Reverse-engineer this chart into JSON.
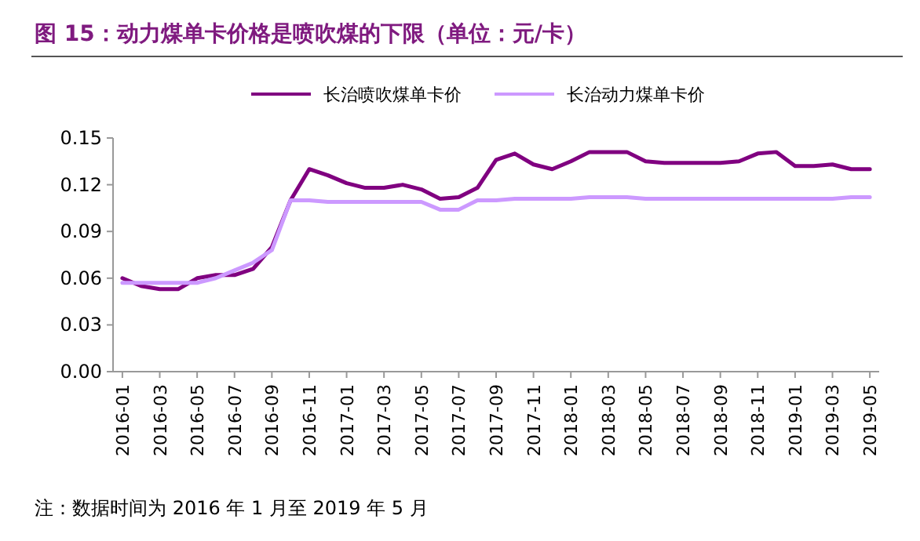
{
  "chart_data": {
    "type": "line",
    "title": "图 15：动力煤单卡价格是喷吹煤的下限（单位：元/卡）",
    "categories": [
      "2016-01",
      null,
      "2016-03",
      null,
      "2016-05",
      null,
      "2016-07",
      null,
      "2016-09",
      null,
      "2016-11",
      null,
      "2017-01",
      null,
      "2017-03",
      null,
      "2017-05",
      null,
      "2017-07",
      null,
      "2017-09",
      null,
      "2017-11",
      null,
      "2018-01",
      null,
      "2018-03",
      null,
      "2018-05",
      null,
      "2018-07",
      null,
      "2018-09",
      null,
      "2018-11",
      null,
      "2019-01",
      null,
      "2019-03",
      null,
      "2019-05"
    ],
    "series": [
      {
        "name": "长治喷吹煤单卡价",
        "color": "#800080",
        "values": [
          0.06,
          0.055,
          0.053,
          0.053,
          0.06,
          0.062,
          0.062,
          0.066,
          0.08,
          0.11,
          0.13,
          0.126,
          0.121,
          0.118,
          0.118,
          0.12,
          0.117,
          0.111,
          0.112,
          0.118,
          0.136,
          0.14,
          0.133,
          0.13,
          0.135,
          0.141,
          0.141,
          0.141,
          0.135,
          0.134,
          0.134,
          0.134,
          0.134,
          0.135,
          0.14,
          0.141,
          0.132,
          0.132,
          0.133,
          0.13,
          0.13
        ]
      },
      {
        "name": "长治动力煤单卡价",
        "color": "#cc99ff",
        "values": [
          0.057,
          0.057,
          0.057,
          0.057,
          0.057,
          0.06,
          0.065,
          0.07,
          0.078,
          0.11,
          0.11,
          0.109,
          0.109,
          0.109,
          0.109,
          0.109,
          0.109,
          0.104,
          0.104,
          0.11,
          0.11,
          0.111,
          0.111,
          0.111,
          0.111,
          0.112,
          0.112,
          0.112,
          0.111,
          0.111,
          0.111,
          0.111,
          0.111,
          0.111,
          0.111,
          0.111,
          0.111,
          0.111,
          0.111,
          0.112,
          0.112
        ]
      }
    ],
    "ylim": [
      0,
      0.15
    ],
    "yticks": [
      {
        "value": 0,
        "label": "0.00"
      },
      {
        "value": 0.03,
        "label": "0.03"
      },
      {
        "value": 0.06,
        "label": "0.06"
      },
      {
        "value": 0.09,
        "label": "0.09"
      },
      {
        "value": 0.12,
        "label": "0.12"
      },
      {
        "value": 0.15,
        "label": "0.15"
      }
    ],
    "legend": "top",
    "grid": false,
    "marker": "none",
    "line_style": "solid",
    "annotations": [
      "注：数据时间为 2016 年 1 月至 2019 年 5 月"
    ]
  }
}
